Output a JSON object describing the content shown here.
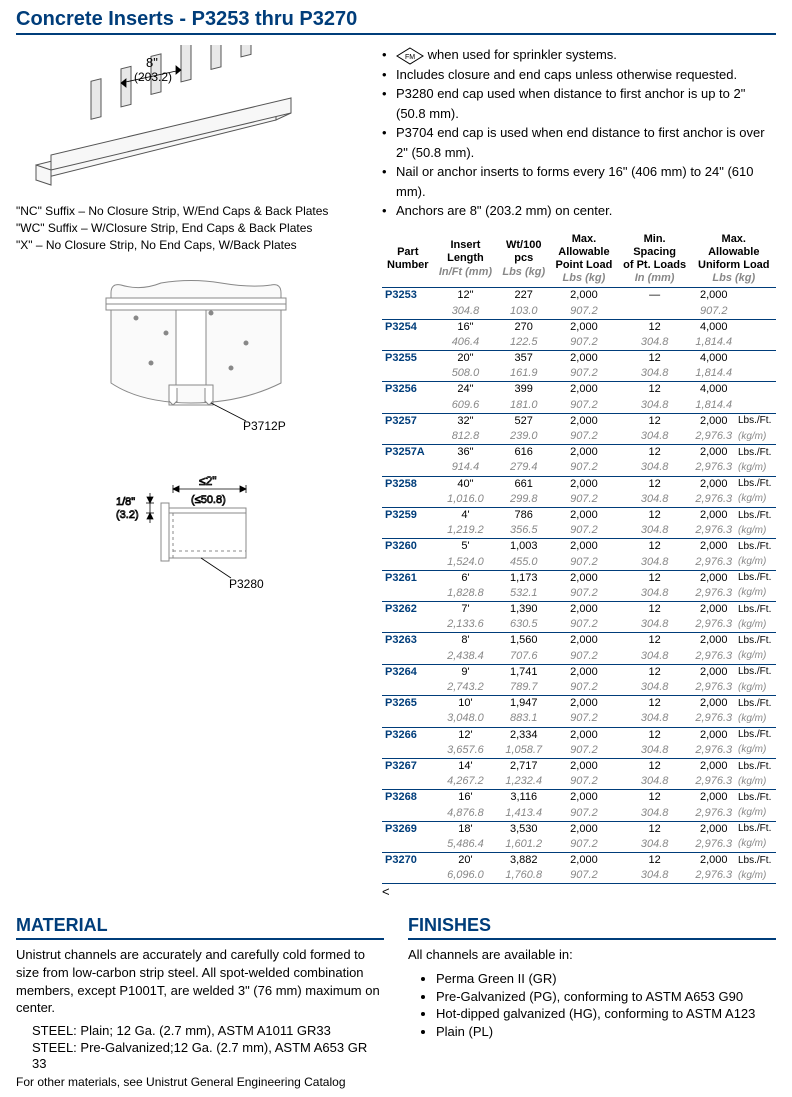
{
  "title": "Concrete Inserts - P3253 thru P3270",
  "diagram1": {
    "dim": "8\"",
    "dim_mm": "(203.2)"
  },
  "suffixes": [
    "\"NC\" Suffix – No Closure Strip, W/End Caps & Back Plates",
    "\"WC\" Suffix – W/Closure Strip, End Caps & Back Plates",
    "\"X\" – No Closure Strip, No End Caps, W/Back Plates"
  ],
  "diagram2": {
    "label": "P3712P"
  },
  "diagram3": {
    "dim_h": "≤2\"",
    "dim_h_mm": "(≤50.8)",
    "dim_v": "1/8\"",
    "dim_v_mm": "(3.2)",
    "label": "P3280"
  },
  "bullets": [
    "when used for sprinkler systems.",
    "Includes closure and end caps unless otherwise requested.",
    "P3280 end cap used when distance to first anchor is up to 2\" (50.8 mm).",
    "P3704 end cap is used when end distance to first anchor is over 2\" (50.8 mm).",
    "Nail or anchor inserts to forms every 16\"  (406 mm) to 24\" (610 mm).",
    "Anchors are 8\" (203.2 mm) on center."
  ],
  "table": {
    "headers": [
      {
        "l1": "Part",
        "l2": "Number",
        "l3": ""
      },
      {
        "l1": "Insert",
        "l2": "Length",
        "l3": "In/Ft (mm)"
      },
      {
        "l1": "Wt/100",
        "l2": "pcs",
        "l3": "Lbs (kg)"
      },
      {
        "l1": "Max.",
        "l2": "Allowable",
        "l3": "Point Load",
        "l4": "Lbs (kg)"
      },
      {
        "l1": "Min.",
        "l2": "Spacing",
        "l3": "of Pt. Loads",
        "l4": "In (mm)"
      },
      {
        "l1": "Max.",
        "l2": "Allowable",
        "l3": "Uniform Load",
        "l4": "Lbs (kg)"
      }
    ],
    "rows": [
      {
        "pn": "P3253",
        "len": "12\"",
        "len_m": "304.8",
        "wt": "227",
        "wt_m": "103.0",
        "pl": "2,000",
        "pl_m": "907.2",
        "sp": "—",
        "sp_m": "",
        "ul": "2,000",
        "ul_m": "907.2",
        "u1": "",
        "u2": ""
      },
      {
        "pn": "P3254",
        "len": "16\"",
        "len_m": "406.4",
        "wt": "270",
        "wt_m": "122.5",
        "pl": "2,000",
        "pl_m": "907.2",
        "sp": "12",
        "sp_m": "304.8",
        "ul": "4,000",
        "ul_m": "1,814.4",
        "u1": "",
        "u2": ""
      },
      {
        "pn": "P3255",
        "len": "20\"",
        "len_m": "508.0",
        "wt": "357",
        "wt_m": "161.9",
        "pl": "2,000",
        "pl_m": "907.2",
        "sp": "12",
        "sp_m": "304.8",
        "ul": "4,000",
        "ul_m": "1,814.4",
        "u1": "",
        "u2": ""
      },
      {
        "pn": "P3256",
        "len": "24\"",
        "len_m": "609.6",
        "wt": "399",
        "wt_m": "181.0",
        "pl": "2,000",
        "pl_m": "907.2",
        "sp": "12",
        "sp_m": "304.8",
        "ul": "4,000",
        "ul_m": "1,814.4",
        "u1": "",
        "u2": ""
      },
      {
        "pn": "P3257",
        "len": "32\"",
        "len_m": "812.8",
        "wt": "527",
        "wt_m": "239.0",
        "pl": "2,000",
        "pl_m": "907.2",
        "sp": "12",
        "sp_m": "304.8",
        "ul": "2,000",
        "ul_m": "2,976.3",
        "u1": "Lbs./Ft.",
        "u2": "(kg/m)"
      },
      {
        "pn": "P3257A",
        "len": "36\"",
        "len_m": "914.4",
        "wt": "616",
        "wt_m": "279.4",
        "pl": "2,000",
        "pl_m": "907.2",
        "sp": "12",
        "sp_m": "304.8",
        "ul": "2,000",
        "ul_m": "2,976.3",
        "u1": "Lbs./Ft.",
        "u2": "(kg/m)"
      },
      {
        "pn": "P3258",
        "len": "40\"",
        "len_m": "1,016.0",
        "wt": "661",
        "wt_m": "299.8",
        "pl": "2,000",
        "pl_m": "907.2",
        "sp": "12",
        "sp_m": "304.8",
        "ul": "2,000",
        "ul_m": "2,976.3",
        "u1": "Lbs./Ft.",
        "u2": "(kg/m)"
      },
      {
        "pn": "P3259",
        "len": "4'",
        "len_m": "1,219.2",
        "wt": "786",
        "wt_m": "356.5",
        "pl": "2,000",
        "pl_m": "907.2",
        "sp": "12",
        "sp_m": "304.8",
        "ul": "2,000",
        "ul_m": "2,976.3",
        "u1": "Lbs./Ft.",
        "u2": "(kg/m)"
      },
      {
        "pn": "P3260",
        "len": "5'",
        "len_m": "1,524.0",
        "wt": "1,003",
        "wt_m": "455.0",
        "pl": "2,000",
        "pl_m": "907.2",
        "sp": "12",
        "sp_m": "304.8",
        "ul": "2,000",
        "ul_m": "2,976.3",
        "u1": "Lbs./Ft.",
        "u2": "(kg/m)"
      },
      {
        "pn": "P3261",
        "len": "6'",
        "len_m": "1,828.8",
        "wt": "1,173",
        "wt_m": "532.1",
        "pl": "2,000",
        "pl_m": "907.2",
        "sp": "12",
        "sp_m": "304.8",
        "ul": "2,000",
        "ul_m": "2,976.3",
        "u1": "Lbs./Ft.",
        "u2": "(kg/m)"
      },
      {
        "pn": "P3262",
        "len": "7'",
        "len_m": "2,133.6",
        "wt": "1,390",
        "wt_m": "630.5",
        "pl": "2,000",
        "pl_m": "907.2",
        "sp": "12",
        "sp_m": "304.8",
        "ul": "2,000",
        "ul_m": "2,976.3",
        "u1": "Lbs./Ft.",
        "u2": "(kg/m)"
      },
      {
        "pn": "P3263",
        "len": "8'",
        "len_m": "2,438.4",
        "wt": "1,560",
        "wt_m": "707.6",
        "pl": "2,000",
        "pl_m": "907.2",
        "sp": "12",
        "sp_m": "304.8",
        "ul": "2,000",
        "ul_m": "2,976.3",
        "u1": "Lbs./Ft.",
        "u2": "(kg/m)"
      },
      {
        "pn": "P3264",
        "len": "9'",
        "len_m": "2,743.2",
        "wt": "1,741",
        "wt_m": "789.7",
        "pl": "2,000",
        "pl_m": "907.2",
        "sp": "12",
        "sp_m": "304.8",
        "ul": "2,000",
        "ul_m": "2,976.3",
        "u1": "Lbs./Ft.",
        "u2": "(kg/m)"
      },
      {
        "pn": "P3265",
        "len": "10'",
        "len_m": "3,048.0",
        "wt": "1,947",
        "wt_m": "883.1",
        "pl": "2,000",
        "pl_m": "907.2",
        "sp": "12",
        "sp_m": "304.8",
        "ul": "2,000",
        "ul_m": "2,976.3",
        "u1": "Lbs./Ft.",
        "u2": "(kg/m)"
      },
      {
        "pn": "P3266",
        "len": "12'",
        "len_m": "3,657.6",
        "wt": "2,334",
        "wt_m": "1,058.7",
        "pl": "2,000",
        "pl_m": "907.2",
        "sp": "12",
        "sp_m": "304.8",
        "ul": "2,000",
        "ul_m": "2,976.3",
        "u1": "Lbs./Ft.",
        "u2": "(kg/m)"
      },
      {
        "pn": "P3267",
        "len": "14'",
        "len_m": "4,267.2",
        "wt": "2,717",
        "wt_m": "1,232.4",
        "pl": "2,000",
        "pl_m": "907.2",
        "sp": "12",
        "sp_m": "304.8",
        "ul": "2,000",
        "ul_m": "2,976.3",
        "u1": "Lbs./Ft.",
        "u2": "(kg/m)"
      },
      {
        "pn": "P3268",
        "len": "16'",
        "len_m": "4,876.8",
        "wt": "3,116",
        "wt_m": "1,413.4",
        "pl": "2,000",
        "pl_m": "907.2",
        "sp": "12",
        "sp_m": "304.8",
        "ul": "2,000",
        "ul_m": "2,976.3",
        "u1": "Lbs./Ft.",
        "u2": "(kg/m)"
      },
      {
        "pn": "P3269",
        "len": "18'",
        "len_m": "5,486.4",
        "wt": "3,530",
        "wt_m": "1,601.2",
        "pl": "2,000",
        "pl_m": "907.2",
        "sp": "12",
        "sp_m": "304.8",
        "ul": "2,000",
        "ul_m": "2,976.3",
        "u1": "Lbs./Ft.",
        "u2": "(kg/m)"
      },
      {
        "pn": "P3270",
        "len": "20'",
        "len_m": "6,096.0",
        "wt": "3,882",
        "wt_m": "1,760.8",
        "pl": "2,000",
        "pl_m": "907.2",
        "sp": "12",
        "sp_m": "304.8",
        "ul": "2,000",
        "ul_m": "2,976.3",
        "u1": "Lbs./Ft.",
        "u2": "(kg/m)"
      }
    ]
  },
  "material": {
    "title": "MATERIAL",
    "body": "Unistrut channels are accurately and carefully cold formed to size from low-carbon strip steel. All spot-welded combination members, except P1001T, are welded 3\" (76 mm) maximum on center.",
    "steel1": "STEEL: Plain; 12 Ga. (2.7 mm), ASTM A1011 GR33",
    "steel2": "STEEL: Pre-Galvanized;12 Ga. (2.7 mm), ASTM A653 GR 33",
    "foot": "For other materials, see Unistrut General Engineering Catalog"
  },
  "finishes": {
    "title": "FINISHES",
    "intro": "All channels are available in:",
    "items": [
      "Perma Green II (GR)",
      "Pre-Galvanized (PG), conforming to ASTM  A653 G90",
      "Hot-dipped galvanized (HG), conforming to ASTM A123",
      "Plain (PL)"
    ]
  }
}
